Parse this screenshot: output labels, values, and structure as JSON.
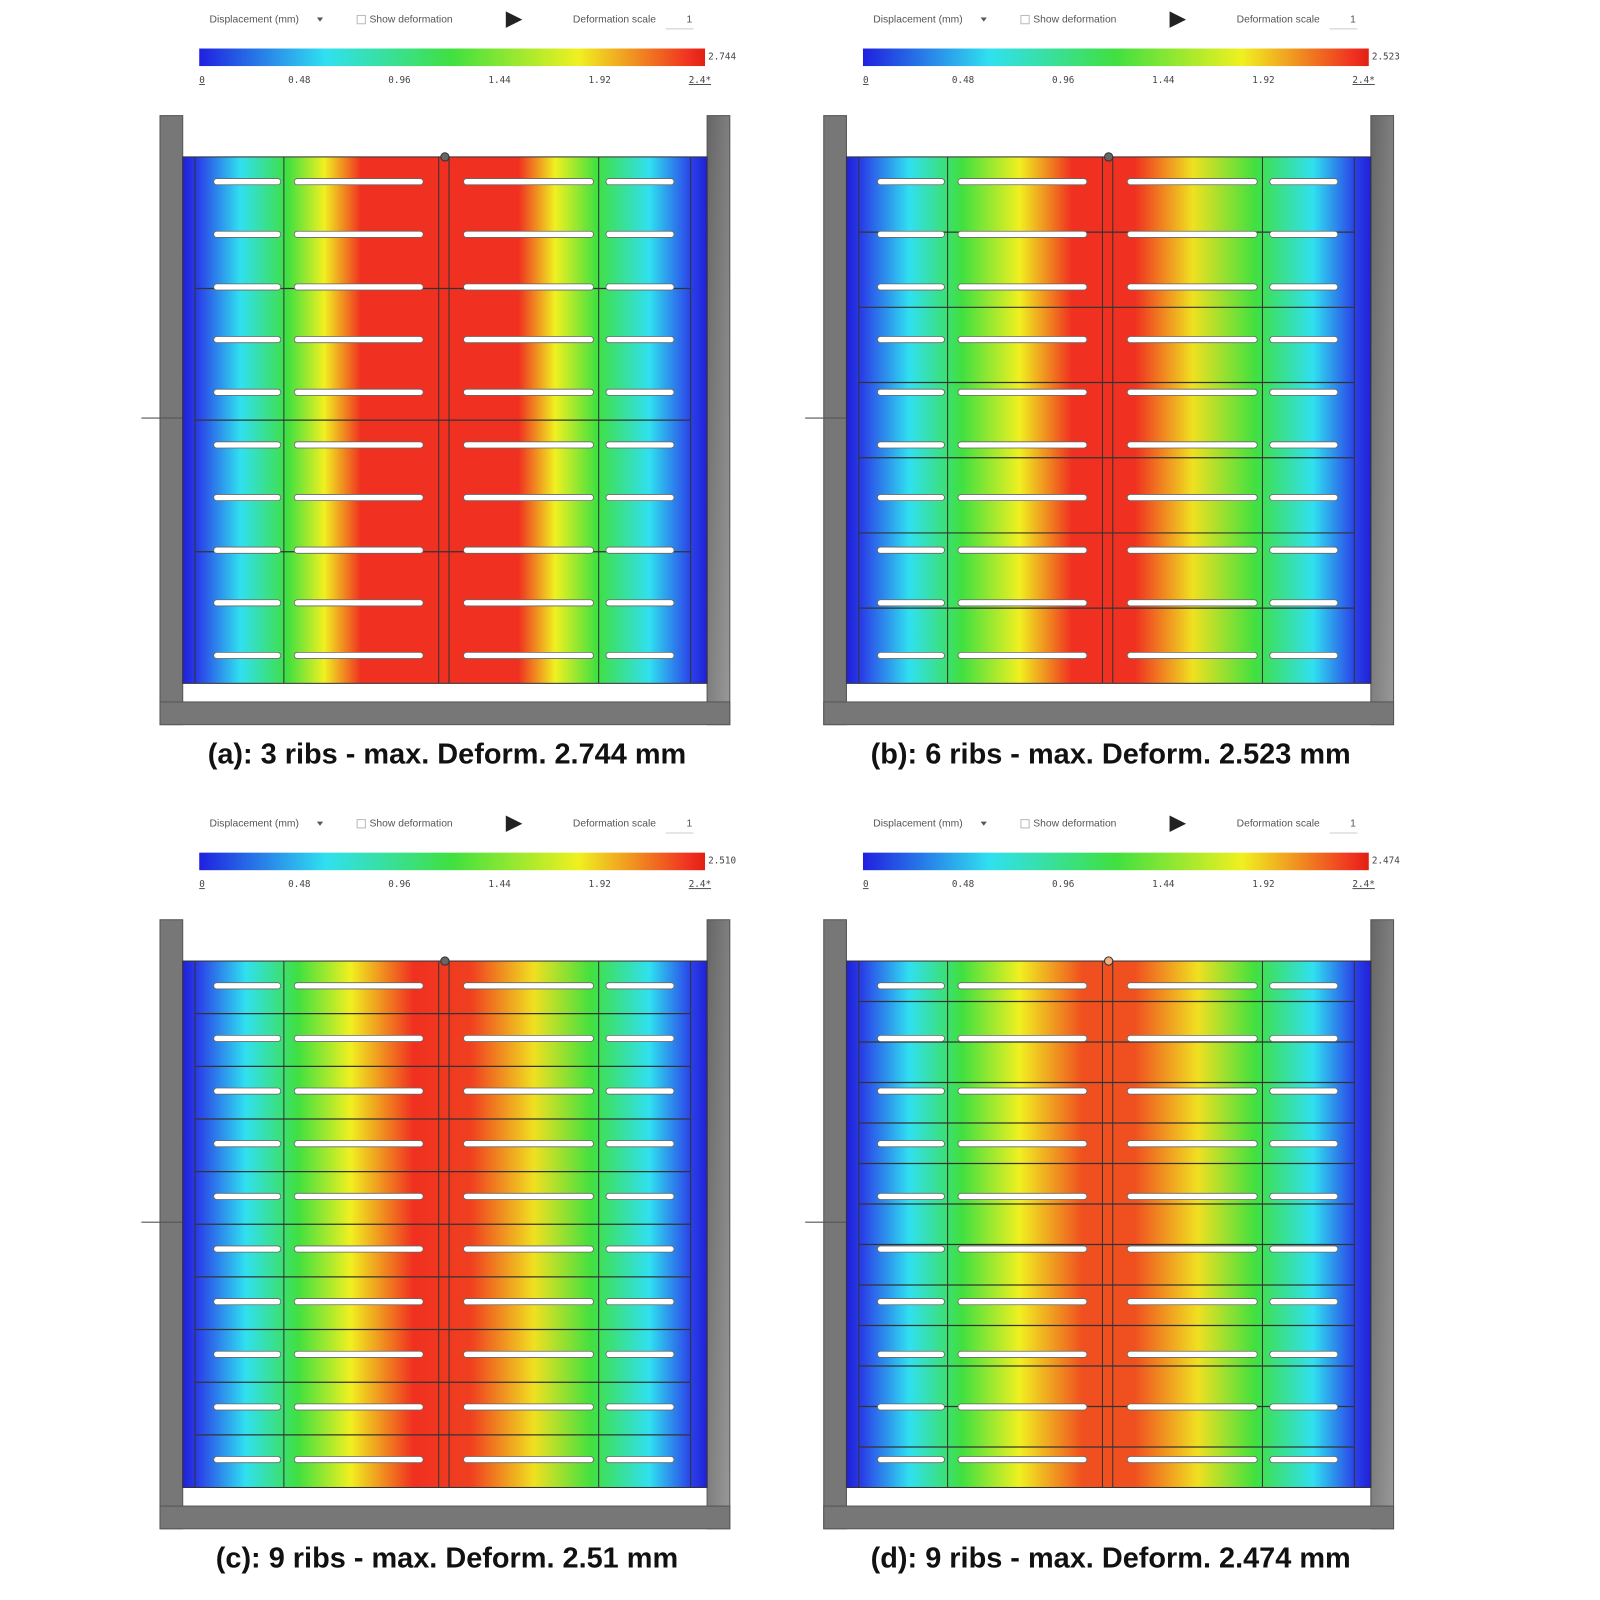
{
  "panels": [
    {
      "toolbar": {
        "result": "Displacement (mm)",
        "show_deformation": "Show deformation",
        "deformation_scale_label": "Deformation scale",
        "deformation_scale": "1"
      },
      "colorbar": {
        "max": "2.744",
        "ticks": [
          "0",
          "0.48",
          "0.96",
          "1.44",
          "1.92",
          "2.4*"
        ]
      },
      "caption": "(a): 3 ribs - max. Deform. 2.744 mm"
    },
    {
      "toolbar": {
        "result": "Displacement (mm)",
        "show_deformation": "Show deformation",
        "deformation_scale_label": "Deformation scale",
        "deformation_scale": "1"
      },
      "colorbar": {
        "max": "2.523",
        "ticks": [
          "0",
          "0.48",
          "0.96",
          "1.44",
          "1.92",
          "2.4*"
        ]
      },
      "caption": "(b): 6 ribs - max. Deform. 2.523 mm"
    },
    {
      "toolbar": {
        "result": "Displacement (mm)",
        "show_deformation": "Show deformation",
        "deformation_scale_label": "Deformation scale",
        "deformation_scale": "1"
      },
      "colorbar": {
        "max": "2.510",
        "ticks": [
          "0",
          "0.48",
          "0.96",
          "1.44",
          "1.92",
          "2.4*"
        ]
      },
      "caption": "(c): 9 ribs - max. Deform. 2.51 mm"
    },
    {
      "toolbar": {
        "result": "Displacement (mm)",
        "show_deformation": "Show deformation",
        "deformation_scale_label": "Deformation scale",
        "deformation_scale": "1"
      },
      "colorbar": {
        "max": "2.474",
        "ticks": [
          "0",
          "0.48",
          "0.96",
          "1.44",
          "1.92",
          "2.4*"
        ]
      },
      "caption": "(d): 9 ribs - max. Deform. 2.474 mm"
    }
  ]
}
